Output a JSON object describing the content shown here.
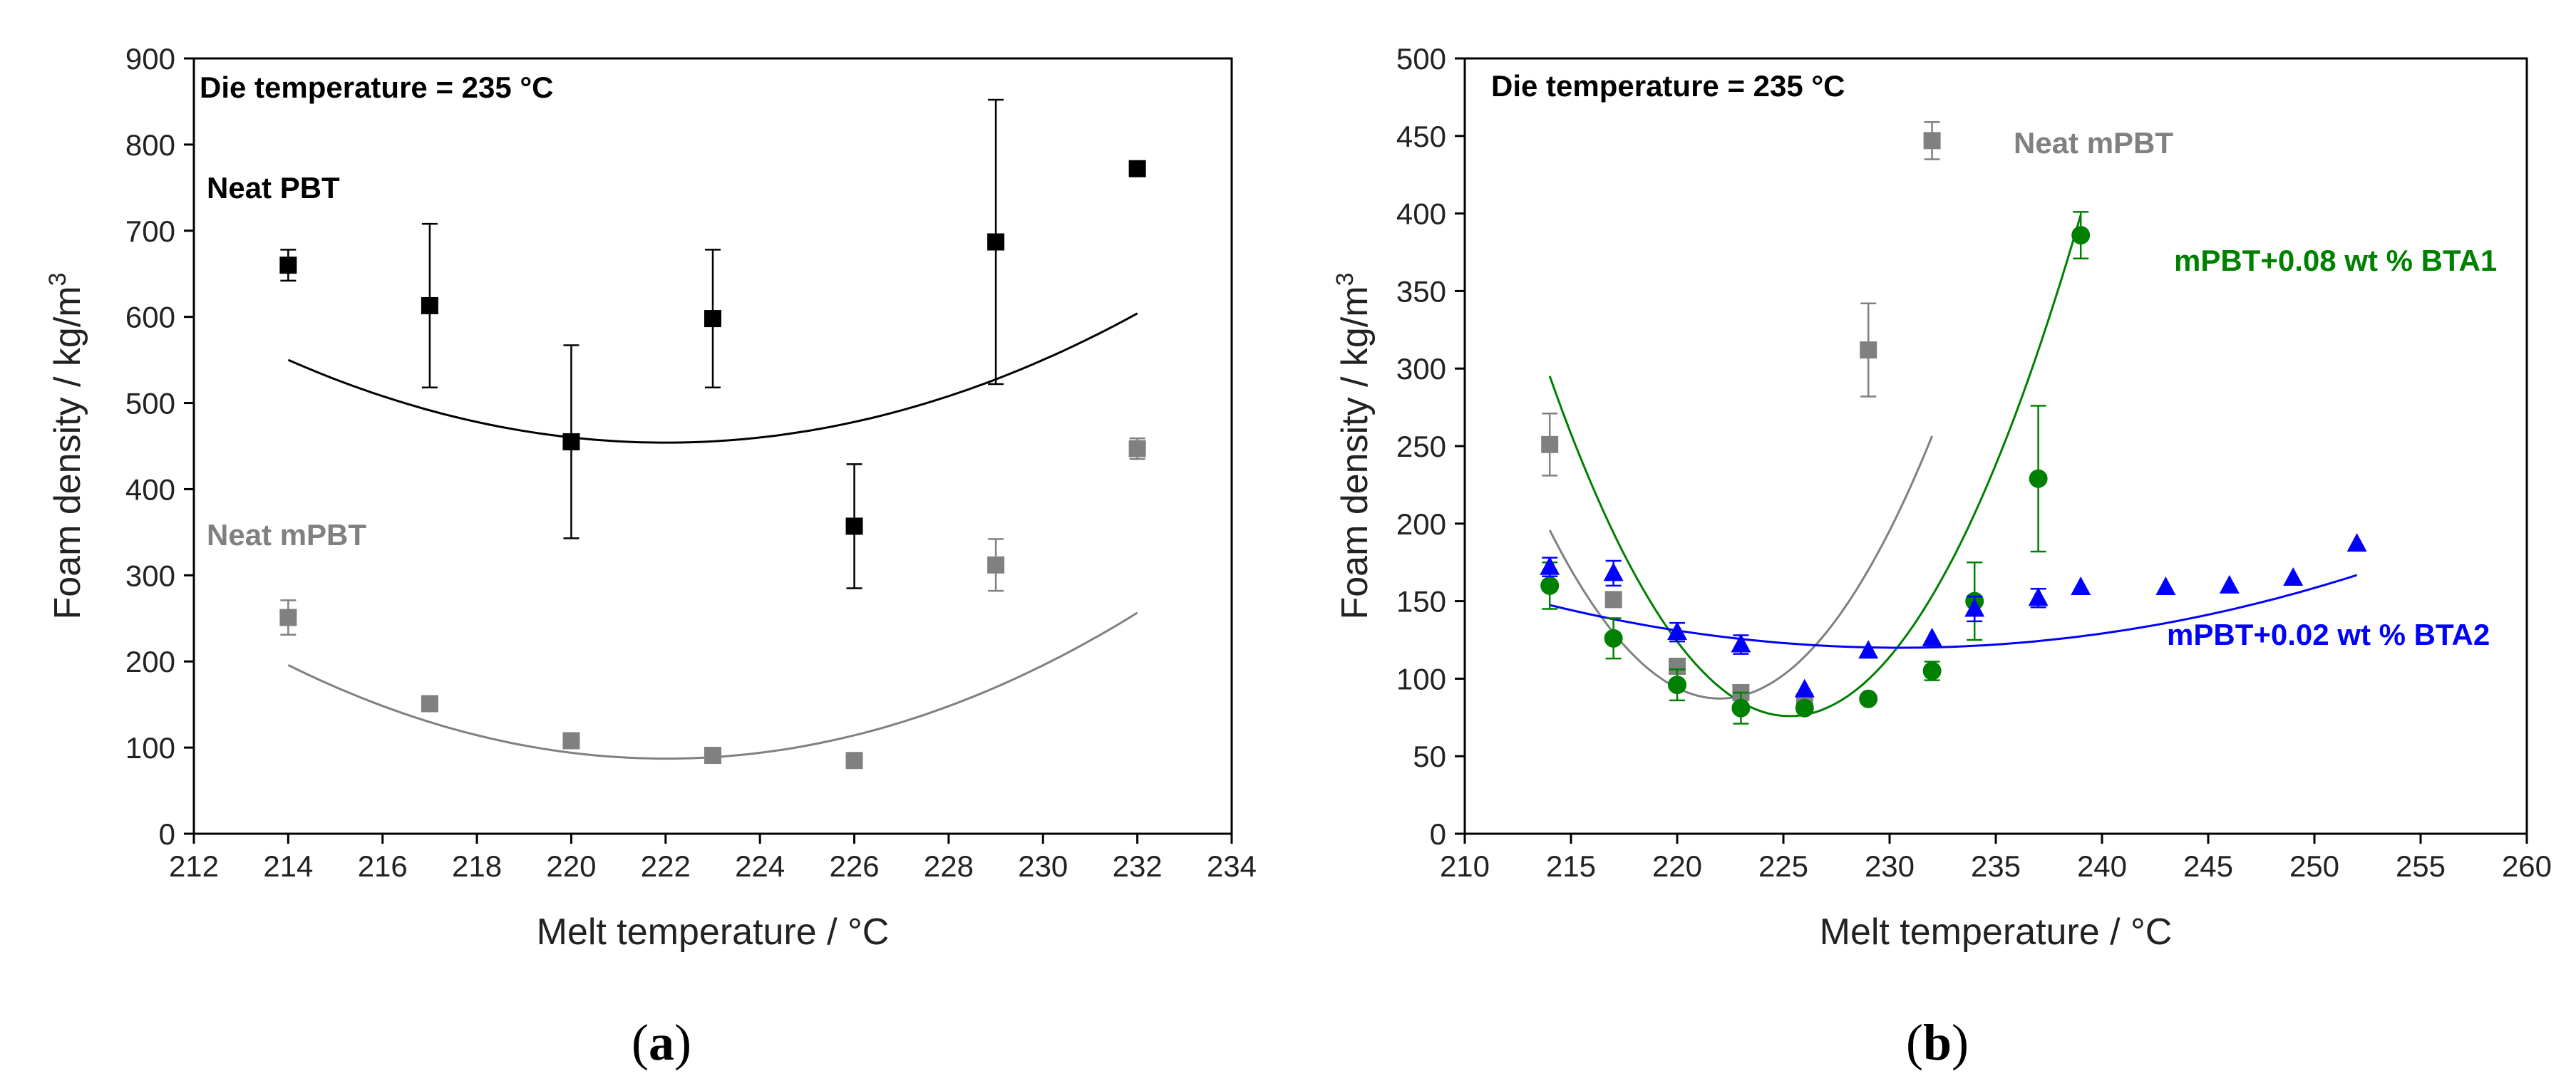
{
  "colors": {
    "pbt": "#000000",
    "mpbt": "#808080",
    "bta1": "#008000",
    "bta2": "#0000ff",
    "frame": "#000000",
    "text": "#222222"
  },
  "chart_data": [
    {
      "type": "scatter",
      "panel_label": "a",
      "title": "Die temperature = 235 °C",
      "xlabel": "Melt temperature / °C",
      "ylabel_main": "Foam density / kg/m",
      "ylabel_sup": "3",
      "xlim": [
        212,
        234
      ],
      "ylim": [
        0,
        900
      ],
      "xticks": [
        "212",
        "214",
        "216",
        "218",
        "220",
        "222",
        "224",
        "226",
        "228",
        "230",
        "232",
        "234"
      ],
      "yticks": [
        "0",
        "100",
        "200",
        "300",
        "400",
        "500",
        "600",
        "700",
        "800",
        "900"
      ],
      "series": [
        {
          "name": "Neat PBT",
          "color": "#000000",
          "marker": "square",
          "x": [
            214,
            217,
            220,
            223,
            226,
            229,
            232
          ],
          "y": [
            660,
            613,
            455,
            598,
            357,
            687,
            772
          ],
          "err": [
            18,
            95,
            112,
            80,
            72,
            165,
            0
          ],
          "fit": {
            "a": 1.5,
            "b": -666,
            "c": 74380,
            "x_from": 214,
            "x_to": 232
          }
        },
        {
          "name": "Neat mPBT",
          "color": "#808080",
          "marker": "square",
          "x": [
            214,
            217,
            220,
            223,
            226,
            229,
            232
          ],
          "y": [
            251,
            151,
            108,
            91,
            85,
            312,
            447
          ],
          "err": [
            20,
            0,
            0,
            0,
            0,
            30,
            12
          ],
          "fit": {
            "a": 1.695,
            "b": -752.6,
            "c": 83628,
            "x_from": 214,
            "x_to": 232
          }
        }
      ],
      "labels": [
        {
          "text": "Neat PBT",
          "series": 0
        },
        {
          "text": "Neat mPBT",
          "series": 1
        }
      ]
    },
    {
      "type": "scatter",
      "panel_label": "b",
      "title": "Die temperature = 235 °C",
      "xlabel": "Melt temperature / °C",
      "ylabel_main": "Foam density / kg/m",
      "ylabel_sup": "3",
      "xlim": [
        210,
        260
      ],
      "ylim": [
        0,
        500
      ],
      "xticks": [
        "210",
        "215",
        "220",
        "225",
        "230",
        "235",
        "240",
        "245",
        "250",
        "255",
        "260"
      ],
      "yticks": [
        "0",
        "50",
        "100",
        "150",
        "200",
        "250",
        "300",
        "350",
        "400",
        "450",
        "500"
      ],
      "series": [
        {
          "name": "Neat mPBT",
          "color": "#808080",
          "marker": "square",
          "x": [
            214,
            217,
            220,
            223,
            226,
            229,
            232
          ],
          "y": [
            251,
            151,
            108,
            91,
            85,
            312,
            447
          ],
          "err": [
            20,
            0,
            0,
            0,
            0,
            30,
            12
          ],
          "fit": {
            "a": 1.695,
            "b": -752.6,
            "c": 83628,
            "x_from": 214,
            "x_to": 232
          }
        },
        {
          "name": "mPBT+0.08 wt % BTA1",
          "color": "#008000",
          "marker": "circle",
          "x": [
            214,
            217,
            220,
            223,
            226,
            229,
            232,
            234,
            237,
            239
          ],
          "y": [
            160,
            126,
            96,
            81,
            81,
            87,
            105,
            150,
            229,
            386
          ],
          "err": [
            15,
            13,
            10,
            10,
            0,
            0,
            6,
            25,
            47,
            15
          ],
          "fit": {
            "a": 1.72,
            "b": -775,
            "c": 87376,
            "x_from": 214,
            "x_to": 239
          }
        },
        {
          "name": "mPBT+0.02 wt % BTA2",
          "color": "#0000ff",
          "marker": "triangle",
          "x": [
            214,
            217,
            220,
            223,
            226,
            229,
            232,
            234,
            237,
            239,
            243,
            246,
            249,
            252
          ],
          "y": [
            172,
            168,
            130,
            122,
            93,
            118,
            126,
            145,
            152,
            159,
            159,
            160,
            165,
            187
          ],
          "err": [
            6,
            8,
            6,
            6,
            0,
            0,
            0,
            8,
            6,
            0,
            0,
            0,
            0,
            0
          ],
          "fit": {
            "a": 0.1012,
            "b": -46.65,
            "c": 5496,
            "x_from": 214,
            "x_to": 252
          }
        }
      ],
      "labels": [
        {
          "text": "Neat mPBT",
          "series": 0
        },
        {
          "text": "mPBT+0.08 wt % BTA1",
          "series": 1
        },
        {
          "text": "mPBT+0.02 wt % BTA2",
          "series": 2
        }
      ]
    }
  ]
}
